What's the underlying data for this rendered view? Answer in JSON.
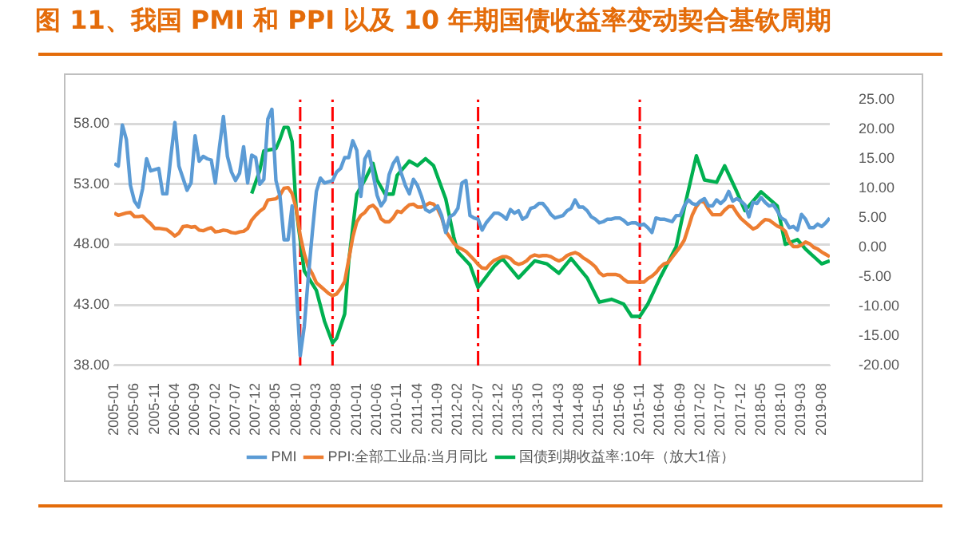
{
  "chart_data": {
    "type": "line",
    "title": "图 11、我国 PMI 和 PPI 以及 10 年期国债收益率变动契合基钦周期",
    "x": [
      "2005-01",
      "2005-02",
      "2005-03",
      "2005-04",
      "2005-05",
      "2005-06",
      "2005-07",
      "2005-08",
      "2005-09",
      "2005-10",
      "2005-11",
      "2005-12",
      "2006-01",
      "2006-02",
      "2006-03",
      "2006-04",
      "2006-05",
      "2006-06",
      "2006-07",
      "2006-08",
      "2006-09",
      "2006-10",
      "2006-11",
      "2006-12",
      "2007-01",
      "2007-02",
      "2007-03",
      "2007-04",
      "2007-05",
      "2007-06",
      "2007-07",
      "2007-08",
      "2007-09",
      "2007-10",
      "2007-11",
      "2007-12",
      "2008-01",
      "2008-02",
      "2008-03",
      "2008-04",
      "2008-05",
      "2008-06",
      "2008-07",
      "2008-08",
      "2008-09",
      "2008-10",
      "2008-11",
      "2008-12",
      "2009-01",
      "2009-02",
      "2009-03",
      "2009-04",
      "2009-05",
      "2009-06",
      "2009-07",
      "2009-08",
      "2009-09",
      "2009-10",
      "2009-11",
      "2009-12",
      "2010-01",
      "2010-02",
      "2010-03",
      "2010-04",
      "2010-05",
      "2010-06",
      "2010-07",
      "2010-08",
      "2010-09",
      "2010-10",
      "2010-11",
      "2010-12",
      "2011-01",
      "2011-02",
      "2011-03",
      "2011-04",
      "2011-05",
      "2011-06",
      "2011-07",
      "2011-08",
      "2011-09",
      "2011-10",
      "2011-11",
      "2011-12",
      "2012-01",
      "2012-02",
      "2012-03",
      "2012-04",
      "2012-05",
      "2012-06",
      "2012-07",
      "2012-08",
      "2012-09",
      "2012-10",
      "2012-11",
      "2012-12",
      "2013-01",
      "2013-02",
      "2013-03",
      "2013-04",
      "2013-05",
      "2013-06",
      "2013-07",
      "2013-08",
      "2013-09",
      "2013-10",
      "2013-11",
      "2013-12",
      "2014-01",
      "2014-02",
      "2014-03",
      "2014-04",
      "2014-05",
      "2014-06",
      "2014-07",
      "2014-08",
      "2014-09",
      "2014-10",
      "2014-11",
      "2014-12",
      "2015-01",
      "2015-02",
      "2015-03",
      "2015-04",
      "2015-05",
      "2015-06",
      "2015-07",
      "2015-08",
      "2015-09",
      "2015-10",
      "2015-11",
      "2015-12",
      "2016-01",
      "2016-02",
      "2016-03",
      "2016-04",
      "2016-05",
      "2016-06",
      "2016-07",
      "2016-08",
      "2016-09",
      "2016-10",
      "2016-11",
      "2016-12",
      "2017-01",
      "2017-02",
      "2017-03",
      "2017-04",
      "2017-05",
      "2017-06",
      "2017-07",
      "2017-08",
      "2017-09",
      "2017-10",
      "2017-11",
      "2017-12",
      "2018-01",
      "2018-02",
      "2018-03",
      "2018-04",
      "2018-05",
      "2018-06",
      "2018-07",
      "2018-08",
      "2018-09",
      "2018-10",
      "2018-11",
      "2018-12",
      "2019-01",
      "2019-02",
      "2019-03",
      "2019-04",
      "2019-05",
      "2019-06",
      "2019-07",
      "2019-08",
      "2019-09",
      "2019-10"
    ],
    "series": [
      {
        "name": "PMI",
        "color": "#5b9bd5",
        "values": [
          54.7,
          54.5,
          57.9,
          56.7,
          52.9,
          51.6,
          51.1,
          52.6,
          55.1,
          54.1,
          54.2,
          54.3,
          52.2,
          52.2,
          55.3,
          58.1,
          54.5,
          53.5,
          52.5,
          53.1,
          57.0,
          54.9,
          55.3,
          55.1,
          55.0,
          53.1,
          56.0,
          58.6,
          55.3,
          54.0,
          53.3,
          53.9,
          56.1,
          53.1,
          55.4,
          55.2,
          53.0,
          53.4,
          58.4,
          59.2,
          53.3,
          52.0,
          48.4,
          48.4,
          51.2,
          44.6,
          38.8,
          41.2,
          45.3,
          49.0,
          52.4,
          53.5,
          53.1,
          53.2,
          53.3,
          54.0,
          54.3,
          55.2,
          55.2,
          56.6,
          55.8,
          52.0,
          55.1,
          55.7,
          53.9,
          52.1,
          51.2,
          51.7,
          53.8,
          54.7,
          55.2,
          53.9,
          52.9,
          52.2,
          53.4,
          52.9,
          52.0,
          50.9,
          50.7,
          50.9,
          51.2,
          50.4,
          49.0,
          50.3,
          50.5,
          51.0,
          53.1,
          53.3,
          50.4,
          50.2,
          50.1,
          49.2,
          49.8,
          50.2,
          50.6,
          50.6,
          50.4,
          50.1,
          50.9,
          50.6,
          50.8,
          50.1,
          50.3,
          51.0,
          51.1,
          51.4,
          51.4,
          51.0,
          50.5,
          50.2,
          50.3,
          50.4,
          50.8,
          51.0,
          51.7,
          51.1,
          51.1,
          50.8,
          50.3,
          50.1,
          49.8,
          49.9,
          50.1,
          50.1,
          50.2,
          50.2,
          50.0,
          49.7,
          49.8,
          49.8,
          49.6,
          49.7,
          49.4,
          49.0,
          50.2,
          50.1,
          50.1,
          50.0,
          49.9,
          50.4,
          50.4,
          51.2,
          51.7,
          51.4,
          51.3,
          51.6,
          51.8,
          51.2,
          51.2,
          51.7,
          51.4,
          51.7,
          52.4,
          51.6,
          51.8,
          51.6,
          51.3,
          50.3,
          51.5,
          51.4,
          51.9,
          51.5,
          51.2,
          51.3,
          50.8,
          50.2,
          50.0,
          49.4,
          49.5,
          49.2,
          50.5,
          50.1,
          49.4,
          49.4,
          49.7,
          49.5,
          49.8,
          50.2
        ]
      },
      {
        "name": "PPI:全部工业品:当月同比",
        "color": "#ed7d31",
        "axis": "y2",
        "values": [
          5.8,
          5.4,
          5.6,
          5.8,
          5.9,
          5.2,
          5.2,
          5.3,
          4.6,
          4.0,
          3.2,
          3.2,
          3.1,
          3.0,
          2.5,
          1.9,
          2.4,
          3.5,
          3.6,
          3.4,
          3.5,
          2.9,
          2.8,
          3.1,
          3.3,
          2.6,
          2.7,
          2.9,
          2.8,
          2.5,
          2.4,
          2.6,
          2.7,
          3.2,
          4.6,
          5.4,
          6.1,
          6.6,
          8.0,
          8.1,
          8.2,
          8.8,
          10.0,
          10.1,
          9.1,
          6.6,
          2.0,
          -1.1,
          -3.3,
          -4.5,
          -6.0,
          -6.6,
          -7.2,
          -7.8,
          -8.2,
          -7.9,
          -7.0,
          -5.8,
          -2.1,
          1.7,
          4.3,
          5.4,
          5.9,
          6.8,
          7.1,
          6.4,
          4.8,
          4.3,
          4.3,
          5.0,
          6.1,
          5.9,
          6.6,
          7.2,
          7.3,
          6.8,
          6.8,
          7.1,
          7.5,
          7.3,
          6.5,
          5.0,
          2.7,
          1.7,
          0.7,
          0.0,
          -0.3,
          -0.7,
          -1.4,
          -2.1,
          -2.9,
          -3.5,
          -3.6,
          -2.8,
          -2.2,
          -1.9,
          -1.6,
          -1.6,
          -1.9,
          -2.6,
          -2.9,
          -2.7,
          -2.3,
          -1.6,
          -1.3,
          -1.5,
          -1.4,
          -1.4,
          -1.6,
          -2.0,
          -2.3,
          -2.0,
          -1.4,
          -1.1,
          -0.9,
          -1.2,
          -1.8,
          -2.2,
          -2.7,
          -3.3,
          -4.3,
          -4.8,
          -4.6,
          -4.6,
          -4.6,
          -4.8,
          -5.4,
          -5.9,
          -5.9,
          -5.9,
          -5.9,
          -5.9,
          -5.3,
          -4.9,
          -4.3,
          -3.4,
          -2.8,
          -2.6,
          -1.7,
          -0.8,
          0.1,
          1.2,
          3.3,
          5.5,
          6.9,
          7.8,
          7.6,
          6.4,
          5.5,
          5.5,
          5.5,
          6.3,
          6.9,
          6.9,
          5.8,
          4.9,
          4.3,
          3.7,
          3.1,
          3.4,
          4.1,
          4.7,
          4.6,
          4.1,
          3.6,
          3.3,
          2.7,
          0.9,
          0.1,
          0.1,
          0.4,
          0.9,
          0.6,
          0.0,
          -0.3,
          -0.8,
          -1.2,
          -1.6
        ]
      },
      {
        "name": "国债到期收益率:10年（放大1倍）",
        "color": "#00b050",
        "axis": "y2",
        "x": [
          "2007-11",
          "2008-01",
          "2008-02",
          "2008-05",
          "2008-06",
          "2008-07",
          "2008-08",
          "2008-09",
          "2008-10",
          "2008-12",
          "2009-03",
          "2009-05",
          "2009-07",
          "2009-08",
          "2009-10",
          "2009-11",
          "2010-01",
          "2010-03",
          "2010-05",
          "2010-06",
          "2010-08",
          "2010-10",
          "2010-11",
          "2011-02",
          "2011-04",
          "2011-06",
          "2011-08",
          "2011-11",
          "2012-01",
          "2012-02",
          "2012-05",
          "2012-07",
          "2012-11",
          "2013-01",
          "2013-05",
          "2013-09",
          "2013-12",
          "2014-03",
          "2014-06",
          "2014-10",
          "2015-01",
          "2015-04",
          "2015-07",
          "2015-09",
          "2015-11",
          "2016-01",
          "2016-04",
          "2016-08",
          "2016-10",
          "2017-01",
          "2017-03",
          "2017-06",
          "2017-08",
          "2017-11",
          "2018-01",
          "2018-05",
          "2018-09",
          "2018-11",
          "2019-02",
          "2019-04",
          "2019-08",
          "2019-10"
        ],
        "values": [
          9.1,
          13.0,
          16.3,
          16.7,
          18.3,
          20.3,
          20.3,
          17.9,
          6.5,
          -4.0,
          -7.3,
          -12.5,
          -16.2,
          -15.4,
          -11.3,
          -2.4,
          9.0,
          11.4,
          14.2,
          11.4,
          9.0,
          9.0,
          12.2,
          14.6,
          13.8,
          15.0,
          13.8,
          8.2,
          1.7,
          -0.8,
          -3.0,
          -6.8,
          -3.2,
          -1.9,
          -5.2,
          -2.3,
          -2.8,
          -4.4,
          -1.9,
          -5.2,
          -9.3,
          -8.8,
          -9.6,
          -11.7,
          -11.7,
          -9.6,
          -5.2,
          0.1,
          6.6,
          15.5,
          11.4,
          11.0,
          13.8,
          9.4,
          6.2,
          9.4,
          7.0,
          0.5,
          1.3,
          -0.3,
          -2.8,
          -2.3
        ]
      }
    ],
    "xlim": [
      "2005-01",
      "2019-10"
    ],
    "xticks": [
      "2005-01",
      "2005-06",
      "2005-11",
      "2006-04",
      "2006-09",
      "2007-02",
      "2007-07",
      "2007-12",
      "2008-05",
      "2008-10",
      "2009-03",
      "2009-08",
      "2010-01",
      "2010-06",
      "2010-11",
      "2011-04",
      "2011-09",
      "2012-02",
      "2012-07",
      "2012-12",
      "2013-05",
      "2013-10",
      "2014-03",
      "2014-08",
      "2015-01",
      "2015-06",
      "2015-11",
      "2016-04",
      "2016-09",
      "2017-02",
      "2017-07",
      "2017-12",
      "2018-05",
      "2018-10",
      "2019-03",
      "2019-08"
    ],
    "ylim": [
      38,
      60
    ],
    "yticks": [
      {
        "value": 38,
        "label": "38.00"
      },
      {
        "value": 43,
        "label": "43.00"
      },
      {
        "value": 48,
        "label": "48.00"
      },
      {
        "value": 53,
        "label": "53.00"
      },
      {
        "value": 58,
        "label": "58.00"
      }
    ],
    "y2lim": [
      -20,
      25
    ],
    "y2ticks": [
      {
        "value": -20,
        "label": "-20.00"
      },
      {
        "value": -15,
        "label": "-15.00"
      },
      {
        "value": -10,
        "label": "-10.00"
      },
      {
        "value": -5,
        "label": "-5.00"
      },
      {
        "value": 0,
        "label": "0.00"
      },
      {
        "value": 5,
        "label": "5.00"
      },
      {
        "value": 10,
        "label": "10.00"
      },
      {
        "value": 15,
        "label": "15.00"
      },
      {
        "value": 20,
        "label": "20.00"
      },
      {
        "value": 25,
        "label": "25.00"
      }
    ],
    "ref_lines": [
      {
        "axis": "x",
        "value": "2008-11",
        "color": "#ff0000",
        "line_style": "dashed"
      },
      {
        "axis": "x",
        "value": "2009-07",
        "color": "#ff0000",
        "line_style": "dashed"
      },
      {
        "axis": "x",
        "value": "2012-07",
        "color": "#ff0000",
        "line_style": "dashed"
      },
      {
        "axis": "x",
        "value": "2015-11",
        "color": "#ff0000",
        "line_style": "dashed"
      }
    ],
    "grid": "y",
    "legend": "bottom",
    "line_style": "solid"
  }
}
